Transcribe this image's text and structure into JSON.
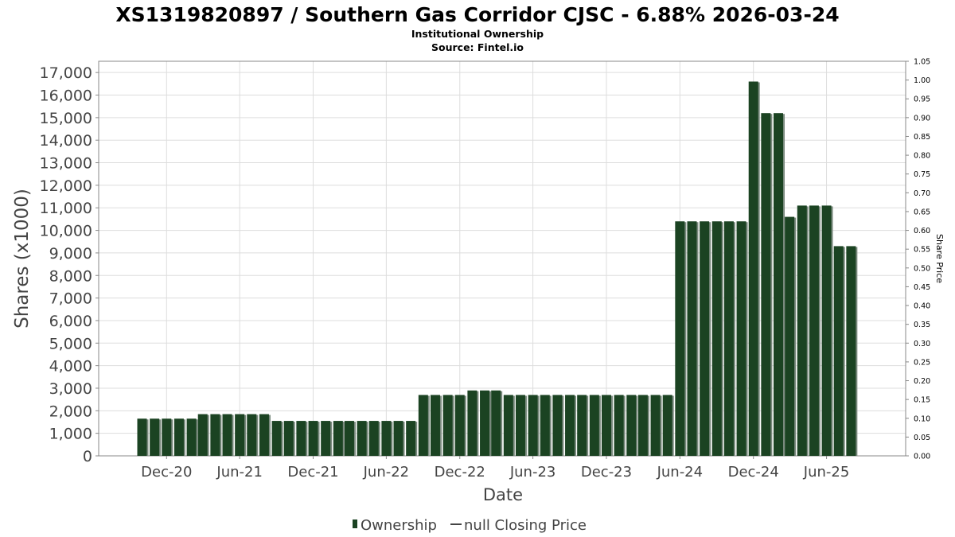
{
  "chart_data": {
    "type": "bar",
    "title": "XS1319820897 / Southern Gas Corridor CJSC - 6.88% 2026-03-24",
    "subtitle": "Institutional Ownership",
    "source": "Source: Fintel.io",
    "xlabel": "Date",
    "ylabel": "Shares (x1000)",
    "y2label": "Share Price",
    "ylim": [
      0,
      17500
    ],
    "y2lim": [
      0,
      1.05
    ],
    "y_ticks": [
      0,
      1000,
      2000,
      3000,
      4000,
      5000,
      6000,
      7000,
      8000,
      9000,
      10000,
      11000,
      12000,
      13000,
      14000,
      15000,
      16000,
      17000
    ],
    "y_tick_labels": [
      "0",
      "1,000",
      "2,000",
      "3,000",
      "4,000",
      "5,000",
      "6,000",
      "7,000",
      "8,000",
      "9,000",
      "10,000",
      "11,000",
      "12,000",
      "13,000",
      "14,000",
      "15,000",
      "16,000",
      "17,000"
    ],
    "y2_tick_labels": [
      "0.00",
      "0.05",
      "0.10",
      "0.15",
      "0.20",
      "0.25",
      "0.30",
      "0.35",
      "0.40",
      "0.45",
      "0.50",
      "0.55",
      "0.60",
      "0.65",
      "0.70",
      "0.75",
      "0.80",
      "0.85",
      "0.90",
      "0.95",
      "1.00",
      "1.05"
    ],
    "xlim": [
      "2020-06-15",
      "2025-12-15"
    ],
    "x_ticks": [
      "2020-12-01",
      "2021-06-01",
      "2021-12-01",
      "2022-06-01",
      "2022-12-01",
      "2023-06-01",
      "2023-12-01",
      "2024-06-01",
      "2024-12-01",
      "2025-06-01"
    ],
    "x_tick_labels": [
      "Dec-20",
      "Jun-21",
      "Dec-21",
      "Jun-22",
      "Dec-22",
      "Jun-23",
      "Dec-23",
      "Jun-24",
      "Dec-24",
      "Jun-25"
    ],
    "grid": true,
    "legend_position": "bottom-center",
    "series": [
      {
        "name": "Ownership",
        "color": "#1b4322",
        "x": [
          "2020-10-01",
          "2020-11-01",
          "2020-12-01",
          "2021-01-01",
          "2021-02-01",
          "2021-03-01",
          "2021-04-01",
          "2021-05-01",
          "2021-06-01",
          "2021-07-01",
          "2021-08-01",
          "2021-09-01",
          "2021-10-01",
          "2021-11-01",
          "2021-12-01",
          "2022-01-01",
          "2022-02-01",
          "2022-03-01",
          "2022-04-01",
          "2022-05-01",
          "2022-06-01",
          "2022-07-01",
          "2022-08-01",
          "2022-09-01",
          "2022-10-01",
          "2022-11-01",
          "2022-12-01",
          "2023-01-01",
          "2023-02-01",
          "2023-03-01",
          "2023-04-01",
          "2023-05-01",
          "2023-06-01",
          "2023-07-01",
          "2023-08-01",
          "2023-09-01",
          "2023-10-01",
          "2023-11-01",
          "2023-12-01",
          "2024-01-01",
          "2024-02-01",
          "2024-03-01",
          "2024-04-01",
          "2024-05-01",
          "2024-06-01",
          "2024-07-01",
          "2024-08-01",
          "2024-09-01",
          "2024-10-01",
          "2024-11-01",
          "2024-12-01",
          "2025-01-01",
          "2025-02-01",
          "2025-03-01",
          "2025-04-01",
          "2025-05-01",
          "2025-06-01",
          "2025-07-01",
          "2025-08-01"
        ],
        "values": [
          1650,
          1650,
          1650,
          1650,
          1650,
          1850,
          1850,
          1850,
          1850,
          1850,
          1850,
          1550,
          1550,
          1550,
          1550,
          1550,
          1550,
          1550,
          1550,
          1550,
          1550,
          1550,
          1550,
          2700,
          2700,
          2700,
          2700,
          2900,
          2900,
          2900,
          2700,
          2700,
          2700,
          2700,
          2700,
          2700,
          2700,
          2700,
          2700,
          2700,
          2700,
          2700,
          2700,
          2700,
          10400,
          10400,
          10400,
          10400,
          10400,
          10400,
          16600,
          15200,
          15200,
          10600,
          11100,
          11100,
          11100,
          9300,
          9300
        ]
      },
      {
        "name": "null Closing Price",
        "color": "#333333",
        "values": []
      }
    ]
  },
  "legend": {
    "ownership_label": "Ownership",
    "price_label": "null Closing Price"
  }
}
